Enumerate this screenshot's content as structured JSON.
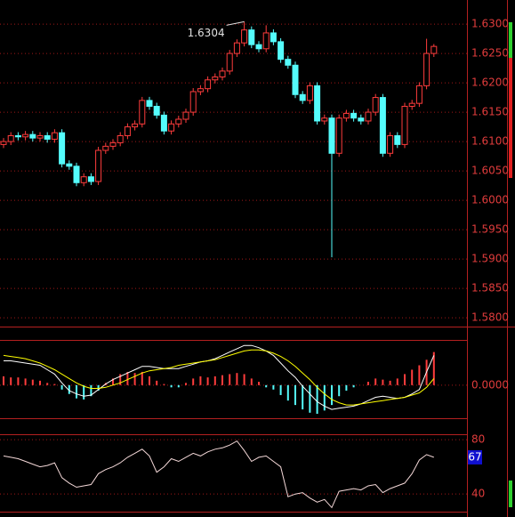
{
  "chart_data": [
    {
      "type": "candlestick",
      "open": [
        1.6095,
        1.61,
        1.611,
        1.6108,
        1.6112,
        1.6106,
        1.611,
        1.6104,
        1.6115,
        1.6062,
        1.6058,
        1.603,
        1.604,
        1.6032,
        1.6085,
        1.6092,
        1.6098,
        1.611,
        1.6125,
        1.613,
        1.617,
        1.616,
        1.6145,
        1.6118,
        1.613,
        1.6138,
        1.615,
        1.6185,
        1.619,
        1.6205,
        1.621,
        1.622,
        1.625,
        1.6268,
        1.629,
        1.6265,
        1.6258,
        1.6285,
        1.627,
        1.624,
        1.623,
        1.618,
        1.617,
        1.6195,
        1.6135,
        1.614,
        1.608,
        1.614,
        1.6148,
        1.614,
        1.6135,
        1.615,
        1.6175,
        1.608,
        1.611,
        1.6095,
        1.616,
        1.6165,
        1.6195,
        1.625
      ],
      "high": [
        1.6106,
        1.6116,
        1.6116,
        1.6118,
        1.6118,
        1.6116,
        1.6116,
        1.6121,
        1.6121,
        1.6068,
        1.6064,
        1.6046,
        1.6046,
        1.6091,
        1.6098,
        1.6104,
        1.6116,
        1.6131,
        1.6136,
        1.6176,
        1.6176,
        1.6166,
        1.6151,
        1.6136,
        1.6144,
        1.6156,
        1.6191,
        1.6196,
        1.6211,
        1.6216,
        1.6226,
        1.6256,
        1.6274,
        1.6304,
        1.6296,
        1.6271,
        1.6298,
        1.6291,
        1.6276,
        1.6246,
        1.6236,
        1.6186,
        1.6201,
        1.6201,
        1.6146,
        1.6146,
        1.6146,
        1.6154,
        1.6154,
        1.6146,
        1.6156,
        1.6181,
        1.6181,
        1.6116,
        1.6116,
        1.6166,
        1.6171,
        1.6201,
        1.6275,
        1.6266
      ],
      "low": [
        1.6089,
        1.6094,
        1.6102,
        1.6102,
        1.61,
        1.61,
        1.6098,
        1.6098,
        1.6056,
        1.6052,
        1.6024,
        1.6024,
        1.6026,
        1.6026,
        1.6079,
        1.6086,
        1.6092,
        1.6104,
        1.6119,
        1.6124,
        1.6154,
        1.6139,
        1.6112,
        1.6112,
        1.6124,
        1.6132,
        1.6144,
        1.6179,
        1.6184,
        1.6199,
        1.6204,
        1.6214,
        1.6244,
        1.6262,
        1.6259,
        1.6252,
        1.6252,
        1.6264,
        1.6234,
        1.6224,
        1.6174,
        1.6164,
        1.6164,
        1.6129,
        1.6129,
        1.5903,
        1.6074,
        1.6134,
        1.6134,
        1.6129,
        1.6129,
        1.6144,
        1.6074,
        1.6074,
        1.6089,
        1.6089,
        1.6154,
        1.6159,
        1.6189,
        1.6244
      ],
      "close": [
        1.61,
        1.611,
        1.6108,
        1.6112,
        1.6106,
        1.611,
        1.6104,
        1.6115,
        1.6062,
        1.6058,
        1.603,
        1.604,
        1.6032,
        1.6085,
        1.6092,
        1.6098,
        1.611,
        1.6125,
        1.613,
        1.617,
        1.616,
        1.6145,
        1.6118,
        1.613,
        1.6138,
        1.615,
        1.6185,
        1.619,
        1.6205,
        1.621,
        1.622,
        1.625,
        1.6268,
        1.629,
        1.6265,
        1.6258,
        1.6285,
        1.627,
        1.624,
        1.623,
        1.618,
        1.617,
        1.6195,
        1.6135,
        1.614,
        1.608,
        1.614,
        1.6148,
        1.614,
        1.6135,
        1.615,
        1.6175,
        1.608,
        1.611,
        1.6095,
        1.616,
        1.6165,
        1.6195,
        1.625,
        1.6262
      ],
      "up_color": "#ff3c3c",
      "down_color": "#54fcfc",
      "annotation": "1.6304",
      "ylim": [
        1.5785,
        1.6341
      ],
      "yticks": [
        {
          "value": 1.58,
          "label": "1.5800"
        },
        {
          "value": 1.585,
          "label": "1.5850"
        },
        {
          "value": 1.59,
          "label": "1.5900"
        },
        {
          "value": 1.595,
          "label": "1.5950"
        },
        {
          "value": 1.6,
          "label": "1.6000"
        },
        {
          "value": 1.605,
          "label": "1.6050"
        },
        {
          "value": 1.61,
          "label": "1.6100"
        },
        {
          "value": 1.615,
          "label": "1.6150"
        },
        {
          "value": 1.62,
          "label": "1.6200"
        },
        {
          "value": 1.625,
          "label": "1.6250"
        },
        {
          "value": 1.63,
          "label": "1.6300"
        }
      ],
      "grid": true
    },
    {
      "type": "macd",
      "histogram": {
        "up_color": "#ff3c3c",
        "down_color": "#54fcfc",
        "values": [
          0.0008,
          0.0007,
          0.0007,
          0.0006,
          0.0005,
          0.0004,
          0.0002,
          0.0001,
          -0.0004,
          -0.0008,
          -0.0012,
          -0.0013,
          -0.001,
          -0.0005,
          0.0002,
          0.0006,
          0.001,
          0.0012,
          0.0011,
          0.0012,
          0.0008,
          0.0004,
          0.0001,
          -0.0002,
          -0.0002,
          0.0002,
          0.0006,
          0.0008,
          0.0007,
          0.0008,
          0.0009,
          0.001,
          0.0011,
          0.001,
          0.0006,
          0.0003,
          -0.0002,
          -0.0004,
          -0.0009,
          -0.0014,
          -0.0018,
          -0.0022,
          -0.0025,
          -0.0026,
          -0.0023,
          -0.0018,
          -0.001,
          -0.0005,
          -0.0002,
          0.0,
          0.0003,
          0.0006,
          0.0005,
          0.0004,
          0.0006,
          0.001,
          0.0014,
          0.0018,
          0.0023,
          0.003
        ]
      },
      "series": [
        {
          "color": "#ffffff",
          "values": [
            0.0022,
            0.0022,
            0.0021,
            0.002,
            0.0019,
            0.0018,
            0.0014,
            0.001,
            0.0002,
            -0.0005,
            -0.0008,
            -0.001,
            -0.0009,
            -0.0004,
            0.0001,
            0.0005,
            0.0008,
            0.0011,
            0.0014,
            0.0017,
            0.0017,
            0.0016,
            0.0015,
            0.0015,
            0.0015,
            0.0017,
            0.0019,
            0.0021,
            0.0022,
            0.0024,
            0.0027,
            0.003,
            0.0033,
            0.0036,
            0.0036,
            0.0034,
            0.0031,
            0.0027,
            0.002,
            0.0013,
            0.0007,
            -0.0001,
            -0.0008,
            -0.0015,
            -0.0019,
            -0.0022,
            -0.0021,
            -0.002,
            -0.0019,
            -0.0017,
            -0.0014,
            -0.0011,
            -0.001,
            -0.0011,
            -0.0012,
            -0.0011,
            -0.0008,
            -0.0004,
            0.0012,
            0.0027
          ]
        },
        {
          "color": "#ffff00",
          "values": [
            0.0027,
            0.0026,
            0.0025,
            0.0024,
            0.0022,
            0.002,
            0.0017,
            0.0014,
            0.001,
            0.0006,
            0.0002,
            -0.0001,
            -0.0003,
            -0.0003,
            -0.0002,
            0.0,
            0.0002,
            0.0005,
            0.0008,
            0.0011,
            0.0013,
            0.0014,
            0.0015,
            0.0016,
            0.0018,
            0.0019,
            0.002,
            0.0021,
            0.0022,
            0.0023,
            0.0025,
            0.0027,
            0.0029,
            0.0031,
            0.0032,
            0.0032,
            0.0031,
            0.0029,
            0.0026,
            0.0022,
            0.0017,
            0.0011,
            0.0005,
            -0.0002,
            -0.0008,
            -0.0013,
            -0.0016,
            -0.0018,
            -0.0018,
            -0.0017,
            -0.0016,
            -0.0015,
            -0.0014,
            -0.0013,
            -0.0012,
            -0.0011,
            -0.0009,
            -0.0007,
            -0.0002,
            0.0006
          ]
        }
      ],
      "ylim": [
        -0.003,
        0.0041
      ],
      "yticks": [
        {
          "value": 0,
          "label": "0.0000"
        }
      ],
      "grid": true
    },
    {
      "type": "line",
      "series": [
        {
          "color": "#f4d8d8",
          "values": [
            68,
            67,
            66,
            64,
            62,
            60,
            61,
            63,
            52,
            48,
            45,
            46,
            47,
            55,
            58,
            60,
            63,
            67,
            70,
            73,
            68,
            56,
            60,
            66,
            64,
            67,
            70,
            68,
            71,
            73,
            74,
            76,
            79,
            72,
            64,
            67,
            68,
            64,
            60,
            38,
            40,
            41,
            37,
            34,
            36,
            30,
            42,
            43,
            44,
            43,
            46,
            47,
            41,
            44,
            46,
            48,
            55,
            65,
            69,
            67
          ]
        }
      ],
      "ylim": [
        27,
        84
      ],
      "yticks": [
        40,
        80
      ],
      "grid": true
    }
  ]
}
